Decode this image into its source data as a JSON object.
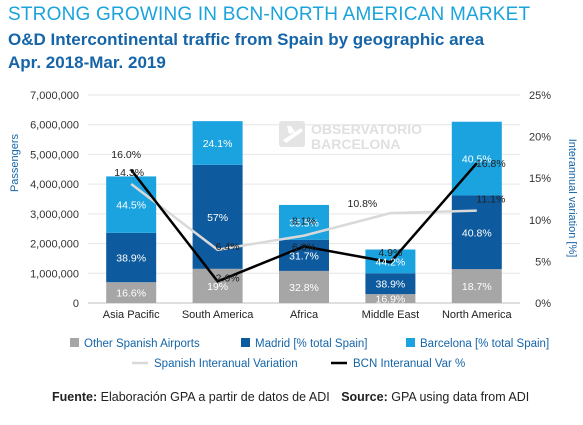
{
  "title": "STRONG GROWING IN BCN-NORTH AMERICAN MARKET",
  "subtitle": "O&D Intercontinental traffic from Spain by geographic area",
  "period": "Apr. 2018-Mar. 2019",
  "watermark": {
    "line1": "OBSERVATORIO",
    "line2": "BARCELONA"
  },
  "colors": {
    "other": "#a6a6a6",
    "madrid": "#0d5a9e",
    "barcelona": "#1ba3e0",
    "spain_line": "#d9d9d9",
    "bcn_line": "#000000",
    "title": "#1ba3dc",
    "subtitle": "#1565a8"
  },
  "source": {
    "es_label": "Fuente:",
    "es_text": "Elaboración GPA a partir de datos de ADI",
    "en_label": "Source:",
    "en_text": "GPA using data from ADI"
  },
  "chart_data": {
    "type": "bar",
    "stacked": true,
    "categories": [
      "Asia Pacific",
      "South America",
      "Africa",
      "Middle East",
      "North America"
    ],
    "series": [
      {
        "name": "Other Spanish Airports",
        "values": [
          700000,
          1150000,
          1080000,
          300000,
          1140000
        ],
        "labels": [
          "16.6%",
          "19%",
          "32.8%",
          "16.9%",
          "18.7%"
        ],
        "color": "#a6a6a6"
      },
      {
        "name": "Madrid [% total Spain]",
        "values": [
          1660000,
          3500000,
          1050000,
          700000,
          2480000
        ],
        "labels": [
          "38.9%",
          "57%",
          "31.7%",
          "38.9%",
          "40.8%"
        ],
        "color": "#0d5a9e"
      },
      {
        "name": "Barcelona [% total Spain]",
        "values": [
          1900000,
          1470000,
          1170000,
          800000,
          2480000
        ],
        "labels": [
          "44.5%",
          "24.1%",
          "35.5%",
          "44.2%",
          "40.5%"
        ],
        "color": "#1ba3e0"
      }
    ],
    "lines": [
      {
        "name": "Spanish Interanual Variation",
        "values": [
          14.3,
          6.4,
          8.1,
          10.8,
          11.1
        ],
        "labels": [
          "14.3%",
          "6.4%",
          "8.1%",
          "10.8%",
          "11.1%"
        ],
        "color": "#d9d9d9",
        "axis": "right"
      },
      {
        "name": "BCN Interanual Var %",
        "values": [
          16.0,
          2.6,
          6.8,
          4.9,
          16.8
        ],
        "labels": [
          "16.0%",
          "2.6%",
          "6.8%",
          "4.9%",
          "16.8%"
        ],
        "color": "#000000",
        "axis": "right"
      }
    ],
    "ylabel": "Passengers",
    "y2label": "Interannual variation [%]",
    "ylim": [
      0,
      7000000
    ],
    "y2lim": [
      0,
      25
    ],
    "yticks": [
      "0",
      "1,000,000",
      "2,000,000",
      "3,000,000",
      "4,000,000",
      "5,000,000",
      "6,000,000",
      "7,000,000"
    ],
    "y2ticks": [
      "0%",
      "5%",
      "10%",
      "15%",
      "20%",
      "25%"
    ],
    "grid": true,
    "legend_position": "bottom"
  }
}
